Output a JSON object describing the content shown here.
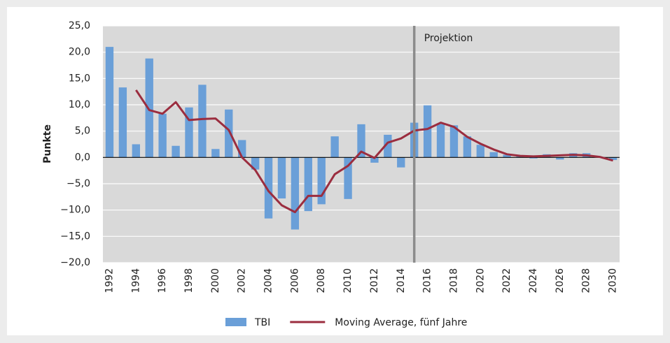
{
  "chart_data": {
    "type": "bar",
    "y_label": "Punkte",
    "annotation": "Projektion",
    "categories": [
      "1992",
      null,
      "1994",
      null,
      "1996",
      null,
      "1998",
      null,
      "2000",
      null,
      "2002",
      null,
      "2004",
      null,
      "2006",
      null,
      "2008",
      null,
      "2010",
      null,
      "2012",
      null,
      "2014",
      null,
      "2016",
      null,
      "2018",
      null,
      "2020",
      null,
      "2022",
      null,
      "2024",
      null,
      "2026",
      null,
      "2028",
      null,
      "2030"
    ],
    "series": [
      {
        "name": "TBI",
        "type": "bar",
        "color": "#6a9fd8",
        "values": [
          21.0,
          13.3,
          2.5,
          18.8,
          8.3,
          2.2,
          9.5,
          13.8,
          1.6,
          9.1,
          3.3,
          -2.3,
          -11.6,
          -7.8,
          -13.7,
          -10.2,
          -8.9,
          4.0,
          -7.9,
          6.3,
          -1.0,
          4.3,
          -1.9,
          6.6,
          9.9,
          6.4,
          6.1,
          4.0,
          2.4,
          1.0,
          0.5,
          0.2,
          -0.2,
          0.6,
          -0.4,
          0.8,
          0.8,
          0.1,
          -0.5
        ]
      },
      {
        "name": "Moving Average, fünf Jahre",
        "type": "line",
        "color": "#9b2d3f",
        "values": [
          null,
          null,
          12.8,
          9.0,
          8.3,
          10.5,
          7.1,
          7.3,
          7.4,
          5.2,
          0.0,
          -2.4,
          -6.4,
          -9.1,
          -10.4,
          -7.3,
          -7.3,
          -3.2,
          -1.6,
          1.1,
          -0.1,
          2.8,
          3.6,
          5.1,
          5.4,
          6.6,
          5.8,
          3.9,
          2.6,
          1.5,
          0.6,
          0.3,
          0.2,
          0.3,
          0.4,
          0.5,
          0.4,
          0.1,
          -0.6
        ]
      }
    ],
    "ylim": [
      -20,
      25
    ],
    "yticks": [
      {
        "value": -20,
        "label": "−20,0"
      },
      {
        "value": -15,
        "label": "−15,0"
      },
      {
        "value": -10,
        "label": "−10,0"
      },
      {
        "value": -5,
        "label": "−5,0"
      },
      {
        "value": 0,
        "label": "0,0"
      },
      {
        "value": 5,
        "label": "5,0"
      },
      {
        "value": 10,
        "label": "10,0"
      },
      {
        "value": 15,
        "label": "15,0"
      },
      {
        "value": 20,
        "label": "20,0"
      },
      {
        "value": 25,
        "label": "25,0"
      }
    ],
    "grid": true
  }
}
